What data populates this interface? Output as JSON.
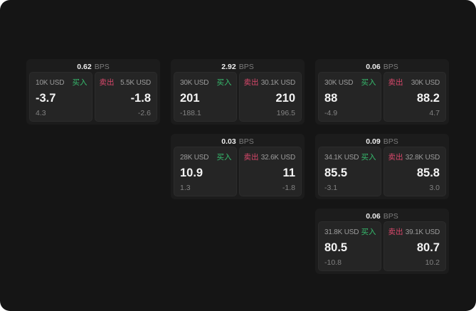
{
  "labels": {
    "buy": "买入",
    "sell": "卖出",
    "bps_unit": "BPS"
  },
  "colors": {
    "buy": "#36bd6e",
    "sell": "#d9486b",
    "page_bg": "#151515",
    "card_bg": "#1c1c1c",
    "panel_bg": "#252525"
  },
  "cards": [
    {
      "col": 0,
      "row": 0,
      "bps": "0.62",
      "buy": {
        "size": "10K USD",
        "price": "-3.7",
        "delta": "4.3"
      },
      "sell": {
        "size": "5.5K USD",
        "price": "-1.8",
        "delta": "-2.6"
      }
    },
    {
      "col": 1,
      "row": 0,
      "bps": "2.92",
      "buy": {
        "size": "30K USD",
        "price": "201",
        "delta": "-188.1"
      },
      "sell": {
        "size": "30.1K USD",
        "price": "210",
        "delta": "196.5"
      }
    },
    {
      "col": 2,
      "row": 0,
      "bps": "0.06",
      "buy": {
        "size": "30K USD",
        "price": "88",
        "delta": "-4.9"
      },
      "sell": {
        "size": "30K USD",
        "price": "88.2",
        "delta": "4.7"
      }
    },
    {
      "col": 1,
      "row": 1,
      "bps": "0.03",
      "buy": {
        "size": "28K USD",
        "price": "10.9",
        "delta": "1.3"
      },
      "sell": {
        "size": "32.6K USD",
        "price": "11",
        "delta": "-1.8"
      }
    },
    {
      "col": 2,
      "row": 1,
      "bps": "0.09",
      "buy": {
        "size": "34.1K USD",
        "price": "85.5",
        "delta": "-3.1"
      },
      "sell": {
        "size": "32.8K USD",
        "price": "85.8",
        "delta": "3.0"
      }
    },
    {
      "col": 2,
      "row": 2,
      "bps": "0.06",
      "buy": {
        "size": "31.8K USD",
        "price": "80.5",
        "delta": "-10.8"
      },
      "sell": {
        "size": "39.1K USD",
        "price": "80.7",
        "delta": "10.2"
      }
    }
  ]
}
